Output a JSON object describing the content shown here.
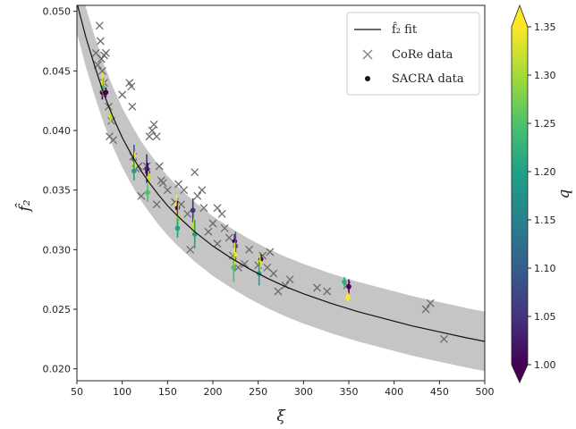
{
  "chart_data": {
    "type": "scatter",
    "xlabel": "ξ",
    "ylabel": "f̂₂",
    "xlim": [
      50,
      500
    ],
    "ylim": [
      0.019,
      0.0505
    ],
    "xticks": [
      50,
      100,
      150,
      200,
      250,
      300,
      350,
      400,
      450,
      500
    ],
    "yticks": [
      0.02,
      0.025,
      0.03,
      0.035,
      0.04,
      0.045,
      0.05
    ],
    "ytick_labels": [
      "0.020",
      "0.025",
      "0.030",
      "0.035",
      "0.040",
      "0.045",
      "0.050"
    ],
    "colorbar": {
      "label": "q",
      "range": [
        1.0,
        1.35
      ],
      "ticks": [
        1.0,
        1.05,
        1.1,
        1.15,
        1.2,
        1.25,
        1.3,
        1.35
      ],
      "tick_labels": [
        "1.00",
        "1.05",
        "1.10",
        "1.15",
        "1.20",
        "1.25",
        "1.30",
        "1.35"
      ],
      "colormap": "viridis",
      "extend": "both"
    },
    "legend": {
      "placement": "top-right",
      "entries": [
        {
          "label": "f̂₂ fit",
          "marker": "line"
        },
        {
          "label": "CoRe data",
          "marker": "x"
        },
        {
          "label": "SACRA data",
          "marker": "dot"
        }
      ]
    },
    "fit": {
      "x": [
        50,
        60,
        70,
        80,
        90,
        100,
        110,
        120,
        130,
        140,
        150,
        160,
        170,
        180,
        190,
        200,
        220,
        240,
        260,
        280,
        300,
        330,
        360,
        390,
        420,
        450,
        480,
        500
      ],
      "y": [
        0.0507,
        0.0478,
        0.0453,
        0.043,
        0.0411,
        0.0394,
        0.038,
        0.0367,
        0.0356,
        0.0346,
        0.0337,
        0.0329,
        0.0322,
        0.0315,
        0.0309,
        0.0303,
        0.0293,
        0.0284,
        0.0276,
        0.0269,
        0.0263,
        0.0255,
        0.0248,
        0.0242,
        0.0236,
        0.0231,
        0.0226,
        0.0223
      ]
    },
    "band_halfwidth": 0.0025,
    "core_data": [
      [
        71,
        0.0465
      ],
      [
        73,
        0.0455
      ],
      [
        75,
        0.0488
      ],
      [
        76,
        0.0475
      ],
      [
        77,
        0.046
      ],
      [
        78,
        0.045
      ],
      [
        80,
        0.0463
      ],
      [
        82,
        0.0465
      ],
      [
        80,
        0.044
      ],
      [
        85,
        0.042
      ],
      [
        88,
        0.0408
      ],
      [
        86,
        0.0395
      ],
      [
        90,
        0.0392
      ],
      [
        100,
        0.043
      ],
      [
        108,
        0.044
      ],
      [
        110,
        0.0437
      ],
      [
        111,
        0.042
      ],
      [
        112,
        0.0378
      ],
      [
        115,
        0.0368
      ],
      [
        118,
        0.037
      ],
      [
        121,
        0.0345
      ],
      [
        127,
        0.037
      ],
      [
        130,
        0.0395
      ],
      [
        133,
        0.04
      ],
      [
        135,
        0.0405
      ],
      [
        138,
        0.0395
      ],
      [
        141,
        0.037
      ],
      [
        143,
        0.0358
      ],
      [
        138,
        0.0338
      ],
      [
        145,
        0.0356
      ],
      [
        150,
        0.035
      ],
      [
        158,
        0.034
      ],
      [
        162,
        0.0355
      ],
      [
        165,
        0.0338
      ],
      [
        168,
        0.035
      ],
      [
        172,
        0.033
      ],
      [
        175,
        0.03
      ],
      [
        180,
        0.0365
      ],
      [
        183,
        0.0345
      ],
      [
        188,
        0.035
      ],
      [
        190,
        0.0335
      ],
      [
        195,
        0.0315
      ],
      [
        200,
        0.0322
      ],
      [
        205,
        0.0335
      ],
      [
        205,
        0.0305
      ],
      [
        210,
        0.033
      ],
      [
        213,
        0.0318
      ],
      [
        218,
        0.031
      ],
      [
        222,
        0.0295
      ],
      [
        228,
        0.0285
      ],
      [
        235,
        0.0288
      ],
      [
        240,
        0.03
      ],
      [
        250,
        0.0287
      ],
      [
        255,
        0.0295
      ],
      [
        260,
        0.0285
      ],
      [
        263,
        0.0298
      ],
      [
        267,
        0.028
      ],
      [
        272,
        0.0265
      ],
      [
        280,
        0.027
      ],
      [
        285,
        0.0275
      ],
      [
        315,
        0.0268
      ],
      [
        326,
        0.0265
      ],
      [
        348,
        0.027
      ],
      [
        435,
        0.025
      ],
      [
        440,
        0.0255
      ],
      [
        455,
        0.0225
      ]
    ],
    "sacra_data": [
      {
        "x": 78,
        "y": 0.0432,
        "q": 1.0,
        "err": 0.0006
      },
      {
        "x": 78,
        "y": 0.044,
        "q": 1.35,
        "err": 0.0008
      },
      {
        "x": 79,
        "y": 0.0436,
        "q": 1.25,
        "err": 0.0008
      },
      {
        "x": 82,
        "y": 0.0432,
        "q": 1.0,
        "err": 0.0004
      },
      {
        "x": 87,
        "y": 0.0412,
        "q": 1.32,
        "err": 0.0006
      },
      {
        "x": 113,
        "y": 0.0376,
        "q": 1.1,
        "err": 0.0012
      },
      {
        "x": 114,
        "y": 0.0372,
        "q": 1.35,
        "err": 0.001
      },
      {
        "x": 113,
        "y": 0.0366,
        "q": 1.2,
        "err": 0.0008
      },
      {
        "x": 128,
        "y": 0.0348,
        "q": 1.25,
        "err": 0.0008
      },
      {
        "x": 127,
        "y": 0.0368,
        "q": 1.05,
        "err": 0.0012
      },
      {
        "x": 128,
        "y": 0.0365,
        "q": 1.0,
        "err": 0.0008
      },
      {
        "x": 129,
        "y": 0.036,
        "q": 1.32,
        "err": 0.0006
      },
      {
        "x": 160,
        "y": 0.0338,
        "q": 1.35,
        "err": 0.0008
      },
      {
        "x": 161,
        "y": 0.0335,
        "q": 1.0,
        "err": 0.0006
      },
      {
        "x": 162,
        "y": 0.0326,
        "q": 1.3,
        "err": 0.0012
      },
      {
        "x": 161,
        "y": 0.0318,
        "q": 1.2,
        "err": 0.0008
      },
      {
        "x": 178,
        "y": 0.0333,
        "q": 1.05,
        "err": 0.001
      },
      {
        "x": 179,
        "y": 0.0318,
        "q": 1.32,
        "err": 0.0008
      },
      {
        "x": 180,
        "y": 0.0313,
        "q": 1.2,
        "err": 0.0012
      },
      {
        "x": 224,
        "y": 0.0307,
        "q": 1.0,
        "err": 0.0006
      },
      {
        "x": 225,
        "y": 0.0303,
        "q": 1.1,
        "err": 0.0012
      },
      {
        "x": 224,
        "y": 0.0296,
        "q": 1.35,
        "err": 0.001
      },
      {
        "x": 223,
        "y": 0.0285,
        "q": 1.25,
        "err": 0.0012
      },
      {
        "x": 253,
        "y": 0.0292,
        "q": 1.0,
        "err": 0.0004
      },
      {
        "x": 252,
        "y": 0.0289,
        "q": 1.33,
        "err": 0.0006
      },
      {
        "x": 251,
        "y": 0.028,
        "q": 1.2,
        "err": 0.001
      },
      {
        "x": 345,
        "y": 0.0273,
        "q": 1.22,
        "err": 0.0004
      },
      {
        "x": 350,
        "y": 0.0269,
        "q": 1.0,
        "err": 0.0006
      },
      {
        "x": 349,
        "y": 0.026,
        "q": 1.35,
        "err": 0.0004
      }
    ]
  }
}
